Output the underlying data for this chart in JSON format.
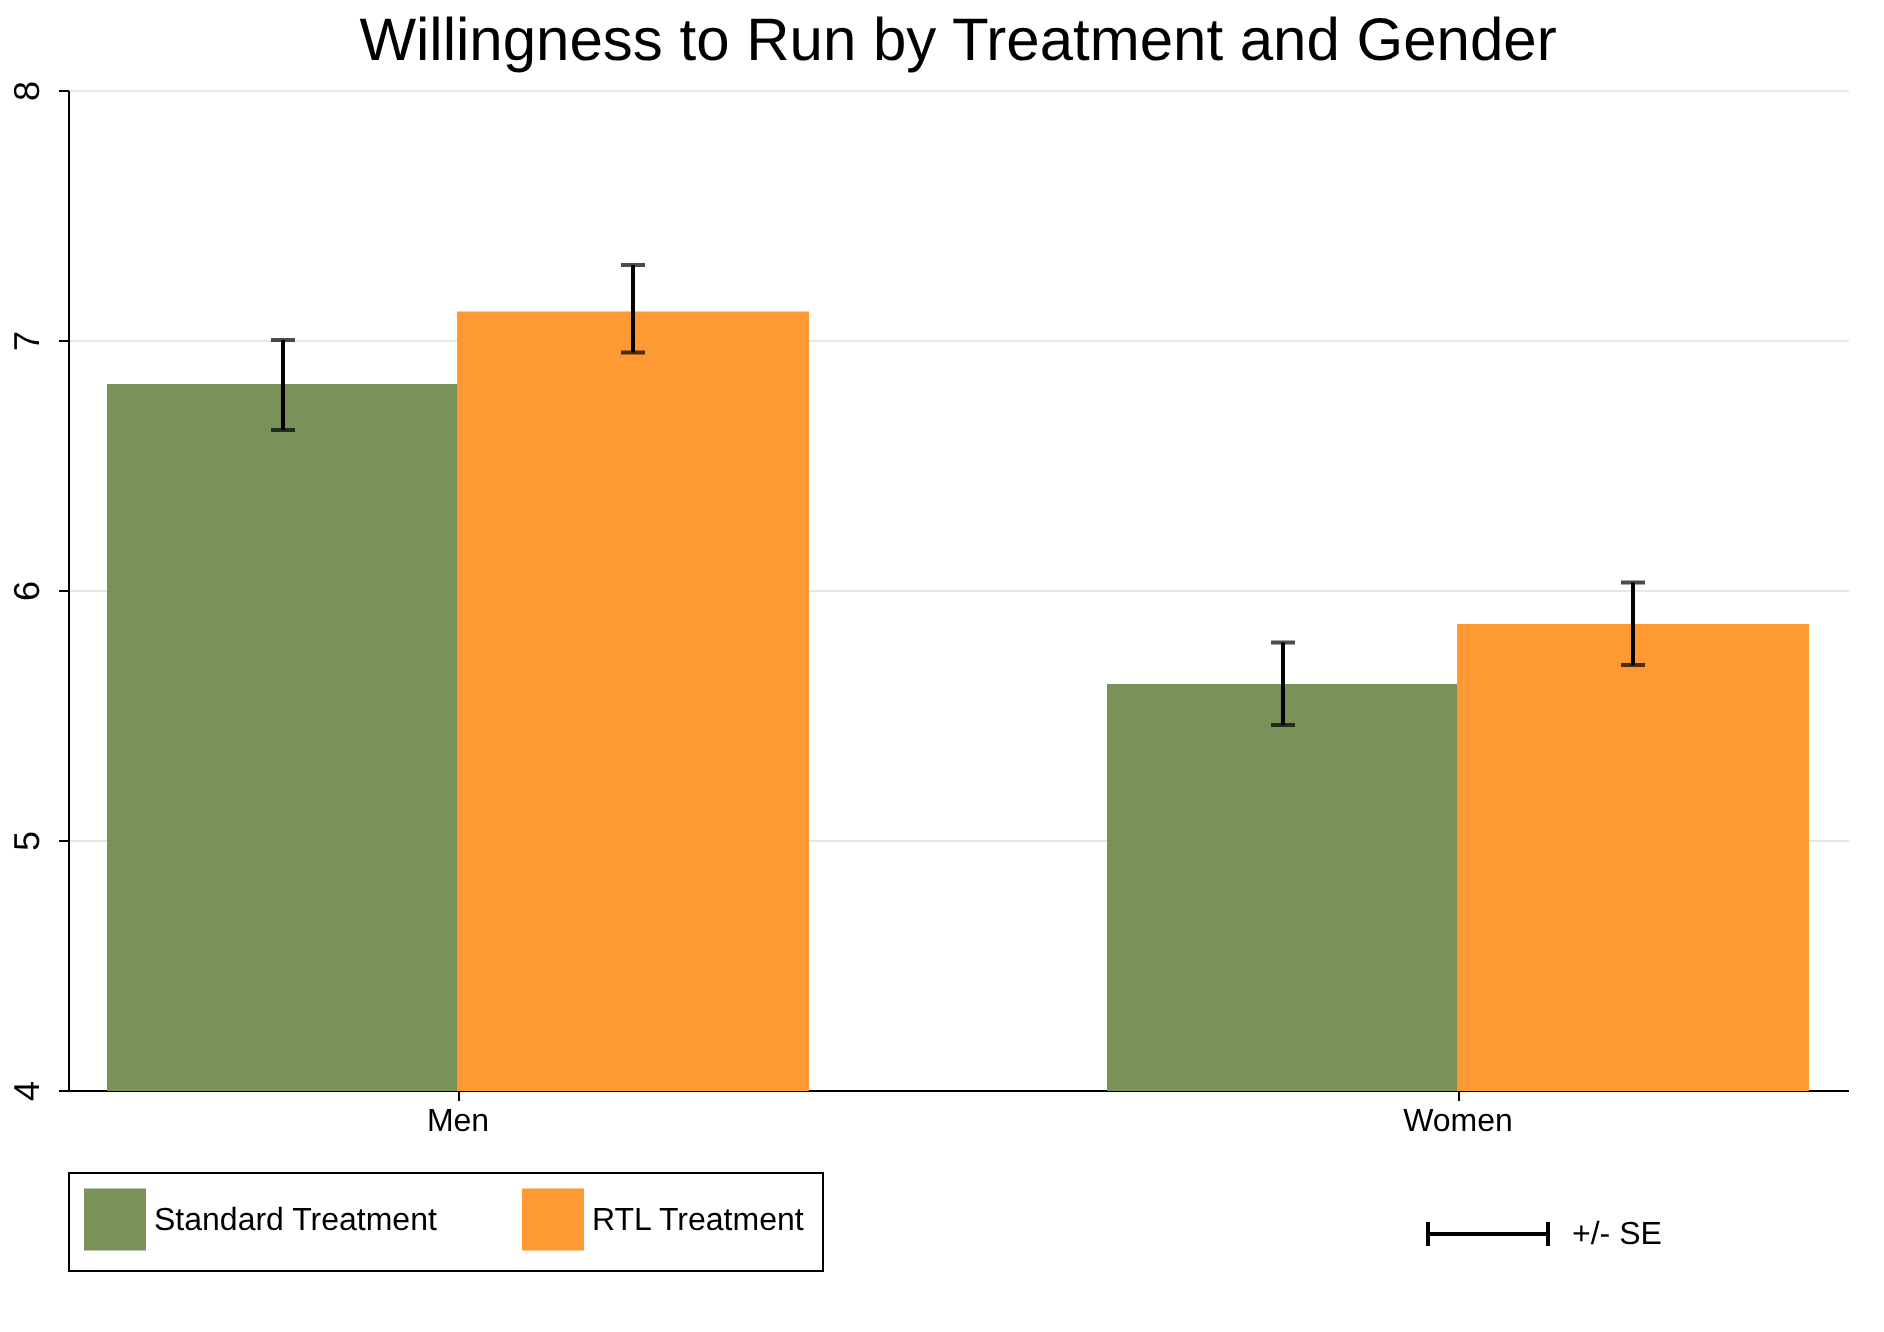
{
  "chart_data": {
    "type": "bar",
    "title": "Willingness to Run by Treatment and Gender",
    "categories": [
      "Men",
      "Women"
    ],
    "series": [
      {
        "name": "Standard Treatment",
        "color": "#7a9159",
        "values": [
          6.82,
          5.62
        ],
        "errors": [
          [
            6.64,
            7.0
          ],
          [
            5.46,
            5.79
          ]
        ]
      },
      {
        "name": "RTL Treatment",
        "color": "#ff9933",
        "values": [
          7.11,
          5.86
        ],
        "errors": [
          [
            6.95,
            7.3
          ],
          [
            5.7,
            6.03
          ]
        ]
      }
    ],
    "ylim": [
      4,
      8
    ],
    "yticks": [
      4,
      5,
      6,
      7,
      8
    ],
    "grid": "y",
    "legend": "bottom",
    "annotations": [
      "+/- SE"
    ]
  }
}
